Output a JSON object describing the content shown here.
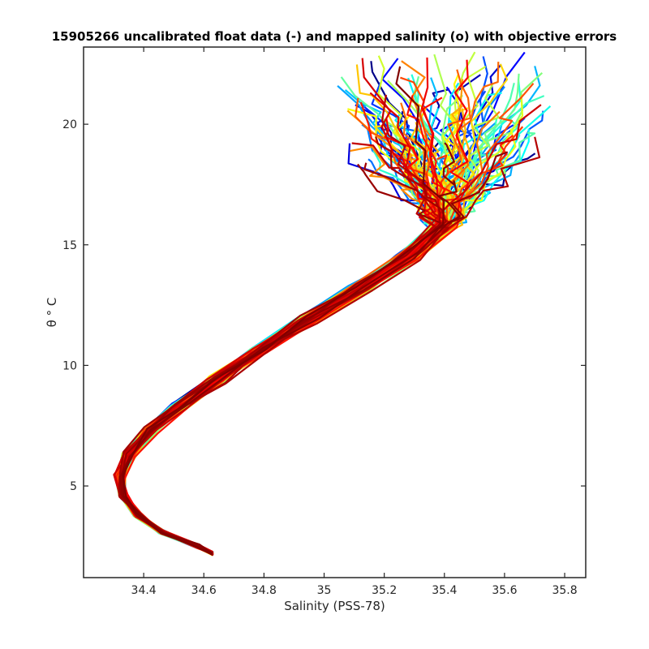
{
  "chart_data": {
    "type": "line",
    "title": "15905266 uncalibrated float data (-) and mapped salinity (o) with objective errors",
    "xlabel": "Salinity (PSS-78)",
    "ylabel": "θ ° C",
    "xlim": [
      34.2,
      35.87
    ],
    "ylim": [
      1.2,
      23.2
    ],
    "xticks": [
      "34.4",
      "34.6",
      "34.8",
      "35",
      "35.2",
      "35.4",
      "35.6",
      "35.8"
    ],
    "yticks": [
      "5",
      "10",
      "15",
      "20"
    ],
    "grid": false,
    "legend": "none",
    "colormap": "jet",
    "series_count": 120,
    "series_color_order": "dark blue (first profiles) to dark red (last profiles)",
    "profile_shape": [
      {
        "s": 34.63,
        "t": 2.2
      },
      {
        "s": 34.58,
        "t": 2.5
      },
      {
        "s": 34.46,
        "t": 3.1
      },
      {
        "s": 34.38,
        "t": 3.8
      },
      {
        "s": 34.33,
        "t": 4.6
      },
      {
        "s": 34.32,
        "t": 5.4
      },
      {
        "s": 34.35,
        "t": 6.3
      },
      {
        "s": 34.42,
        "t": 7.3
      },
      {
        "s": 34.52,
        "t": 8.3
      },
      {
        "s": 34.64,
        "t": 9.4
      },
      {
        "s": 34.78,
        "t": 10.6
      },
      {
        "s": 34.95,
        "t": 11.9
      },
      {
        "s": 35.12,
        "t": 13.2
      },
      {
        "s": 35.28,
        "t": 14.5
      },
      {
        "s": 35.4,
        "t": 15.8
      }
    ],
    "surface_spread": {
      "salinity": [
        35.05,
        35.76
      ],
      "theta": [
        15.5,
        23.0
      ]
    }
  }
}
